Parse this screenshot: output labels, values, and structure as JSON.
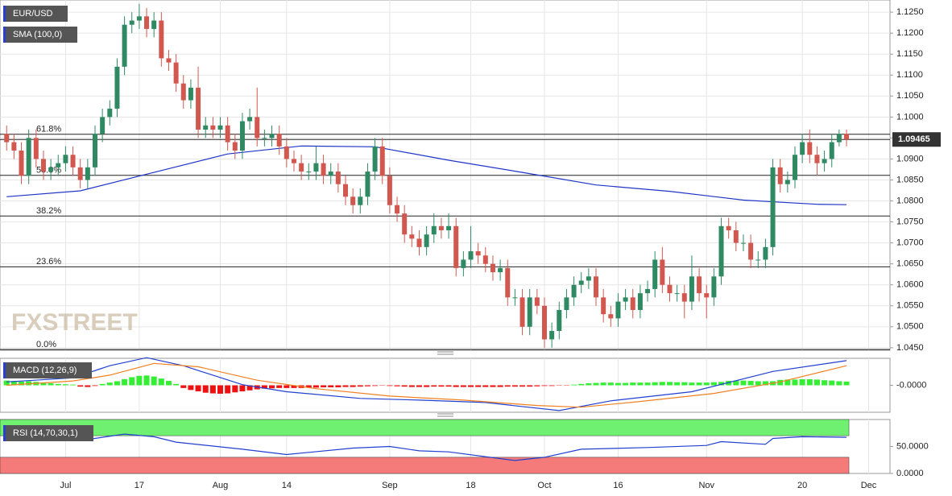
{
  "chart_data": [
    {
      "type": "candlestick",
      "title": "EUR/USD",
      "grid": true,
      "xlim": [
        -0.9,
        119.9
      ],
      "ylim": [
        1.0444,
        1.1279
      ],
      "xticks": [
        {
          "value": 8,
          "label": "Jul"
        },
        {
          "value": 18,
          "label": "17"
        },
        {
          "value": 29,
          "label": "Aug"
        },
        {
          "value": 38,
          "label": "14"
        },
        {
          "value": 52,
          "label": "Sep"
        },
        {
          "value": 63,
          "label": "18"
        },
        {
          "value": 73,
          "label": "Oct"
        },
        {
          "value": 83,
          "label": "16"
        },
        {
          "value": 95,
          "label": "Nov"
        },
        {
          "value": 108,
          "label": "20"
        },
        {
          "value": 117,
          "label": "Dec"
        }
      ],
      "yticks": [
        {
          "value": 1.125,
          "label": "1.1250"
        },
        {
          "value": 1.12,
          "label": "1.1200"
        },
        {
          "value": 1.115,
          "label": "1.1150"
        },
        {
          "value": 1.11,
          "label": "1.1100"
        },
        {
          "value": 1.105,
          "label": "1.1050"
        },
        {
          "value": 1.1,
          "label": "1.1000"
        },
        {
          "value": 1.095,
          "label": "1.0950"
        },
        {
          "value": 1.09,
          "label": "1.0900"
        },
        {
          "value": 1.085,
          "label": "1.0850"
        },
        {
          "value": 1.08,
          "label": "1.0800"
        },
        {
          "value": 1.075,
          "label": "1.0750"
        },
        {
          "value": 1.07,
          "label": "1.0700"
        },
        {
          "value": 1.065,
          "label": "1.0650"
        },
        {
          "value": 1.06,
          "label": "1.0600"
        },
        {
          "value": 1.055,
          "label": "1.0550"
        },
        {
          "value": 1.05,
          "label": "1.0500"
        },
        {
          "value": 1.045,
          "label": "1.0450"
        }
      ],
      "up_color": "#2f8a63",
      "down_color": "#d2574f",
      "open": [
        1.096,
        1.094,
        1.092,
        1.086,
        1.095,
        1.09,
        1.087,
        1.088,
        1.089,
        1.091,
        1.088,
        1.085,
        1.088,
        1.096,
        1.1,
        1.102,
        1.112,
        1.122,
        1.123,
        1.124,
        1.121,
        1.123,
        1.114,
        1.113,
        1.108,
        1.104,
        1.107,
        1.097,
        1.098,
        1.097,
        1.098,
        1.094,
        1.092,
        1.099,
        1.1,
        1.095,
        1.095,
        1.096,
        1.093,
        1.09,
        1.089,
        1.087,
        1.087,
        1.089,
        1.086,
        1.087,
        1.084,
        1.081,
        1.079,
        1.081,
        1.087,
        1.093,
        1.086,
        1.079,
        1.077,
        1.072,
        1.071,
        1.069,
        1.072,
        1.074,
        1.073,
        1.074,
        1.064,
        1.066,
        1.068,
        1.067,
        1.065,
        1.063,
        1.064,
        1.057,
        1.057,
        1.05,
        1.057,
        1.055,
        1.047,
        1.049,
        1.054,
        1.057,
        1.06,
        1.061,
        1.062,
        1.057,
        1.053,
        1.052,
        1.056,
        1.057,
        1.054,
        1.058,
        1.059,
        1.066,
        1.06,
        1.058,
        1.058,
        1.056,
        1.062,
        1.058,
        1.057,
        1.062,
        1.074,
        1.073,
        1.07,
        1.07,
        1.066,
        1.066,
        1.069,
        1.088,
        1.084,
        1.085,
        1.091,
        1.094,
        1.091,
        1.089,
        1.09,
        1.094,
        1.096
      ],
      "high": [
        1.098,
        1.096,
        1.094,
        1.097,
        1.097,
        1.092,
        1.09,
        1.091,
        1.093,
        1.093,
        1.09,
        1.09,
        1.098,
        1.102,
        1.104,
        1.114,
        1.124,
        1.125,
        1.127,
        1.126,
        1.125,
        1.125,
        1.116,
        1.115,
        1.11,
        1.109,
        1.112,
        1.1,
        1.1,
        1.1,
        1.1,
        1.096,
        1.101,
        1.102,
        1.107,
        1.097,
        1.098,
        1.098,
        1.095,
        1.092,
        1.091,
        1.089,
        1.093,
        1.091,
        1.089,
        1.089,
        1.086,
        1.083,
        1.083,
        1.089,
        1.095,
        1.095,
        1.088,
        1.081,
        1.079,
        1.074,
        1.073,
        1.074,
        1.077,
        1.076,
        1.077,
        1.076,
        1.068,
        1.074,
        1.07,
        1.069,
        1.067,
        1.066,
        1.066,
        1.059,
        1.059,
        1.059,
        1.059,
        1.057,
        1.051,
        1.056,
        1.059,
        1.062,
        1.063,
        1.064,
        1.064,
        1.059,
        1.055,
        1.058,
        1.059,
        1.059,
        1.06,
        1.061,
        1.068,
        1.069,
        1.062,
        1.06,
        1.06,
        1.067,
        1.064,
        1.06,
        1.064,
        1.076,
        1.076,
        1.075,
        1.072,
        1.072,
        1.068,
        1.071,
        1.09,
        1.09,
        1.087,
        1.093,
        1.096,
        1.097,
        1.093,
        1.092,
        1.096,
        1.097,
        1.097
      ],
      "low": [
        1.092,
        1.09,
        1.084,
        1.084,
        1.088,
        1.085,
        1.085,
        1.086,
        1.087,
        1.086,
        1.083,
        1.083,
        1.086,
        1.094,
        1.098,
        1.1,
        1.11,
        1.12,
        1.121,
        1.119,
        1.119,
        1.112,
        1.111,
        1.106,
        1.102,
        1.102,
        1.095,
        1.095,
        1.095,
        1.095,
        1.092,
        1.09,
        1.09,
        1.097,
        1.093,
        1.093,
        1.093,
        1.091,
        1.088,
        1.087,
        1.085,
        1.085,
        1.085,
        1.084,
        1.084,
        1.082,
        1.079,
        1.077,
        1.077,
        1.079,
        1.085,
        1.084,
        1.077,
        1.075,
        1.07,
        1.069,
        1.067,
        1.067,
        1.07,
        1.071,
        1.071,
        1.062,
        1.062,
        1.064,
        1.065,
        1.063,
        1.061,
        1.061,
        1.055,
        1.055,
        1.048,
        1.048,
        1.053,
        1.045,
        1.045,
        1.047,
        1.052,
        1.055,
        1.058,
        1.059,
        1.055,
        1.051,
        1.05,
        1.05,
        1.054,
        1.052,
        1.052,
        1.056,
        1.057,
        1.058,
        1.056,
        1.056,
        1.052,
        1.054,
        1.056,
        1.052,
        1.055,
        1.06,
        1.071,
        1.068,
        1.068,
        1.064,
        1.064,
        1.064,
        1.067,
        1.082,
        1.082,
        1.083,
        1.089,
        1.089,
        1.086,
        1.087,
        1.088,
        1.093,
        1.093
      ],
      "close": [
        1.094,
        1.092,
        1.086,
        1.095,
        1.09,
        1.087,
        1.088,
        1.089,
        1.091,
        1.088,
        1.085,
        1.088,
        1.096,
        1.1,
        1.102,
        1.112,
        1.122,
        1.123,
        1.124,
        1.121,
        1.123,
        1.114,
        1.113,
        1.108,
        1.104,
        1.107,
        1.097,
        1.098,
        1.097,
        1.098,
        1.094,
        1.092,
        1.099,
        1.1,
        1.095,
        1.095,
        1.096,
        1.093,
        1.09,
        1.089,
        1.087,
        1.087,
        1.089,
        1.086,
        1.087,
        1.084,
        1.081,
        1.079,
        1.081,
        1.087,
        1.093,
        1.086,
        1.079,
        1.077,
        1.072,
        1.071,
        1.069,
        1.072,
        1.074,
        1.073,
        1.074,
        1.064,
        1.066,
        1.068,
        1.067,
        1.065,
        1.063,
        1.064,
        1.057,
        1.057,
        1.05,
        1.057,
        1.055,
        1.047,
        1.049,
        1.054,
        1.057,
        1.06,
        1.061,
        1.062,
        1.057,
        1.053,
        1.052,
        1.056,
        1.057,
        1.054,
        1.058,
        1.059,
        1.066,
        1.06,
        1.058,
        1.058,
        1.056,
        1.062,
        1.058,
        1.057,
        1.062,
        1.074,
        1.073,
        1.07,
        1.07,
        1.066,
        1.066,
        1.069,
        1.088,
        1.084,
        1.085,
        1.091,
        1.094,
        1.091,
        1.089,
        1.09,
        1.094,
        1.096,
        1.09465
      ],
      "overlays": [
        {
          "name": "SMA (100,0)",
          "color": "#1f35c8",
          "x": [
            0,
            10,
            20,
            30,
            40,
            50,
            60,
            70,
            80,
            90,
            100,
            110,
            114
          ],
          "values": [
            1.081,
            1.0824,
            1.0868,
            1.0912,
            1.0931,
            1.0929,
            1.0897,
            1.0868,
            1.0838,
            1.0823,
            1.0802,
            1.0792,
            1.0791
          ]
        }
      ],
      "levels": [
        {
          "label": "61.8%",
          "value": 1.0959
        },
        {
          "label": "50.0%",
          "value": 1.0861
        },
        {
          "label": "38.2%",
          "value": 1.0764
        },
        {
          "label": "23.6%",
          "value": 1.0643
        },
        {
          "label": "0.0%",
          "value": 1.0446
        }
      ],
      "last_price": {
        "value": 1.09465,
        "label": "1.09465"
      },
      "watermark": "FXSTREET"
    },
    {
      "type": "macd",
      "title": "MACD (12,26,9)",
      "ylim": [
        -0.008,
        0.008
      ],
      "yticks": [
        {
          "value": 0,
          "label": "-0.0000"
        }
      ],
      "histogram": {
        "up_color": "#33ee33",
        "down_color": "#ee1111",
        "values": [
          0.0014,
          0.0013,
          0.0011,
          0.0012,
          0.001,
          0.0008,
          0.0006,
          0.0004,
          0.0003,
          0.0002,
          -0.0004,
          -0.0005,
          -0.0002,
          0.0004,
          0.0008,
          0.0012,
          0.0018,
          0.0024,
          0.0028,
          0.0029,
          0.0026,
          0.002,
          0.0013,
          0.0004,
          -0.0008,
          -0.0014,
          -0.0018,
          -0.0022,
          -0.0024,
          -0.0025,
          -0.0024,
          -0.0021,
          -0.0018,
          -0.0015,
          -0.0012,
          -0.001,
          -0.0009,
          -0.0008,
          -0.0008,
          -0.0008,
          -0.0008,
          -0.0007,
          -0.0007,
          -0.0006,
          -0.0006,
          -0.0006,
          -0.0005,
          -0.0005,
          -0.0004,
          -0.0003,
          -0.0002,
          -0.0001,
          -0.0002,
          -0.0003,
          -0.0004,
          -0.0005,
          -0.0005,
          -0.0005,
          -0.0004,
          -0.0004,
          -0.0004,
          -0.0005,
          -0.0005,
          -0.0005,
          -0.0005,
          -0.0005,
          -0.0005,
          -0.0005,
          -0.0004,
          -0.0004,
          -0.0004,
          -0.0004,
          -0.0003,
          -0.0002,
          -0.0002,
          -0.0001,
          -0.0001,
          0.0002,
          0.0004,
          0.0006,
          0.0007,
          0.0008,
          0.0008,
          0.0007,
          0.0007,
          0.0008,
          0.0008,
          0.0008,
          0.0009,
          0.001,
          0.001,
          0.0009,
          0.0009,
          0.0008,
          0.0008,
          0.0008,
          0.0009,
          0.001,
          0.0013,
          0.0014,
          0.0014,
          0.0013,
          0.0012,
          0.0012,
          0.0012,
          0.0016,
          0.0017,
          0.0017,
          0.0018,
          0.0018,
          0.0017,
          0.0015,
          0.0014,
          0.0012,
          0.0011
        ]
      },
      "series": [
        {
          "color": "#2040d0",
          "x": [
            0,
            9,
            14,
            19,
            24,
            32,
            38,
            48,
            56,
            65,
            75,
            82,
            93,
            104,
            114
          ],
          "values": [
            0.001,
            0.0022,
            0.0058,
            0.0082,
            0.0058,
            0.0002,
            -0.0019,
            -0.0039,
            -0.0044,
            -0.0051,
            -0.0075,
            -0.0046,
            -0.0019,
            0.0041,
            0.0073
          ]
        },
        {
          "color": "#f08020",
          "x": [
            0,
            9,
            14,
            20,
            26,
            34,
            42,
            52,
            62,
            72,
            78,
            86,
            96,
            105,
            114
          ],
          "values": [
            0.0,
            0.0013,
            0.003,
            0.0065,
            0.0055,
            0.0015,
            -0.001,
            -0.0032,
            -0.0044,
            -0.006,
            -0.0065,
            -0.0048,
            -0.0024,
            0.001,
            0.0058
          ]
        }
      ]
    },
    {
      "type": "rsi",
      "title": "RSI (14,70,30,1)",
      "ylim": [
        0,
        100
      ],
      "yticks": [
        {
          "value": 0,
          "label": "0.0000"
        },
        {
          "value": 50,
          "label": "50.0000"
        }
      ],
      "bands": [
        {
          "from": 70,
          "to": 100,
          "color": "#70f070"
        },
        {
          "from": 0,
          "to": 30,
          "color": "#f57a7a"
        }
      ],
      "series": [
        {
          "color": "#2040d0",
          "x": [
            0,
            5,
            10,
            16,
            20,
            23,
            32,
            38,
            47,
            52,
            56,
            60,
            69,
            73,
            78,
            87,
            95,
            97,
            103,
            104,
            108,
            114
          ],
          "values": [
            65,
            65,
            61,
            73,
            68,
            58,
            45,
            35,
            47,
            50,
            42,
            40,
            24,
            30,
            45,
            48,
            52,
            59,
            54,
            65,
            68,
            67
          ]
        }
      ]
    }
  ]
}
